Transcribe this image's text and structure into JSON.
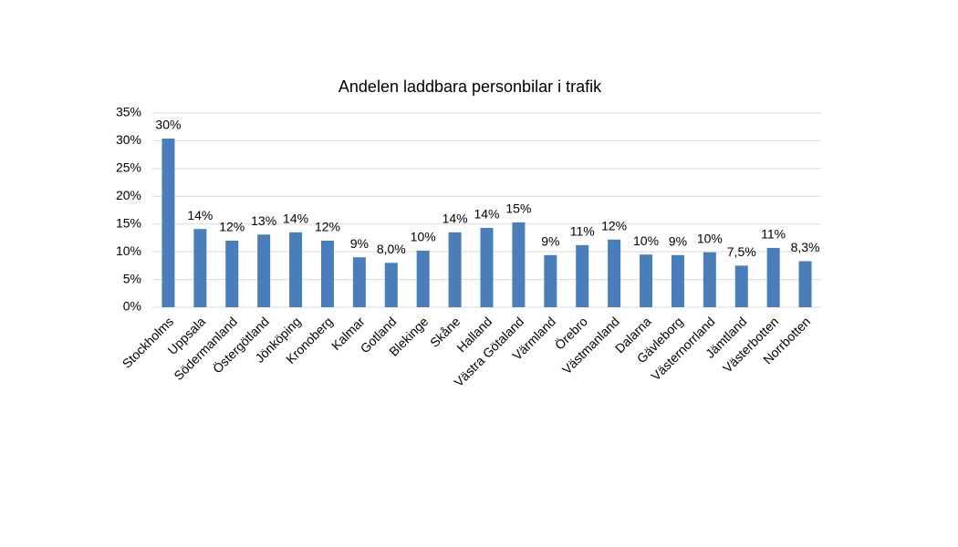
{
  "chart_data": {
    "type": "bar",
    "title": "Andelen laddbara personbilar i trafik",
    "categories": [
      "Stockholms",
      "Uppsala",
      "Södermanland",
      "Östergötland",
      "Jönköping",
      "Kronoberg",
      "Kalmar",
      "Gotland",
      "Blekinge",
      "Skåne",
      "Halland",
      "Västra Götaland",
      "Värmland",
      "Örebro",
      "Västmanland",
      "Dalarna",
      "Gävleborg",
      "Västernorrland",
      "Jämtland",
      "Västerbotten",
      "Norrbotten"
    ],
    "values": [
      30.4,
      14.1,
      12.0,
      13.1,
      13.5,
      12.0,
      9.0,
      8.0,
      10.2,
      13.5,
      14.3,
      15.3,
      9.4,
      11.2,
      12.2,
      9.5,
      9.4,
      9.9,
      7.5,
      10.7,
      8.3
    ],
    "value_labels": [
      "30%",
      "14%",
      "12%",
      "13%",
      "14%",
      "12%",
      "9%",
      "8,0%",
      "10%",
      "14%",
      "14%",
      "15%",
      "9%",
      "11%",
      "12%",
      "10%",
      "9%",
      "10%",
      "7,5%",
      "11%",
      "8,3%"
    ],
    "color": "#4a7ebb",
    "ylim": [
      0,
      35
    ],
    "yticks": [
      {
        "value": 0,
        "label": "0%"
      },
      {
        "value": 5,
        "label": "5%"
      },
      {
        "value": 10,
        "label": "10%"
      },
      {
        "value": 15,
        "label": "15%"
      },
      {
        "value": 20,
        "label": "20%"
      },
      {
        "value": 25,
        "label": "25%"
      },
      {
        "value": 30,
        "label": "30%"
      },
      {
        "value": 35,
        "label": "35%"
      }
    ],
    "grid": true
  }
}
